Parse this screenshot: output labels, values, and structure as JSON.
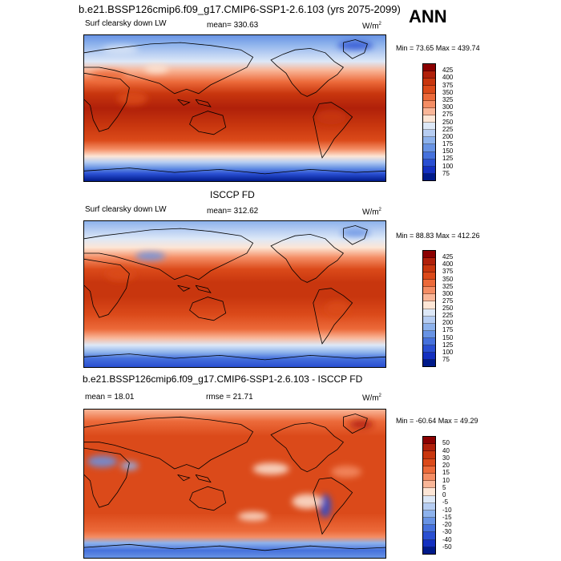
{
  "header": {
    "title": "b.e21.BSSP126cmip6.f09_g17.CMIP6-SSP1-2.6.103 (yrs 2075-2099)",
    "season": "ANN"
  },
  "panels": [
    {
      "id": "model",
      "variable": "Surf clearsky down LW",
      "stat_left": "mean= 330.63",
      "units": "W/m",
      "units_sup": "2",
      "minmax": "Min =  73.65 Max = 439.74",
      "levels": [
        "425",
        "400",
        "375",
        "350",
        "325",
        "300",
        "275",
        "250",
        "225",
        "200",
        "175",
        "150",
        "125",
        "100",
        "75"
      ],
      "colors": [
        "#8b0000",
        "#b0200a",
        "#c8360e",
        "#db4a1a",
        "#ec6a3a",
        "#f48d64",
        "#f9b698",
        "#fde6d6",
        "#dde8f7",
        "#b6cdf2",
        "#8db2ec",
        "#6893e4",
        "#4671dc",
        "#2a4fd2",
        "#1430c0",
        "#001a8a"
      ],
      "map_style": "abs_model"
    },
    {
      "id": "obs",
      "heading": "ISCCP FD",
      "variable": "Surf clearsky down LW",
      "stat_left": "mean= 312.62",
      "units": "W/m",
      "units_sup": "2",
      "minmax": "Min =  88.83 Max = 412.26",
      "levels": [
        "425",
        "400",
        "375",
        "350",
        "325",
        "300",
        "275",
        "250",
        "225",
        "200",
        "175",
        "150",
        "125",
        "100",
        "75"
      ],
      "colors": [
        "#8b0000",
        "#b0200a",
        "#c8360e",
        "#db4a1a",
        "#ec6a3a",
        "#f48d64",
        "#f9b698",
        "#fde6d6",
        "#dde8f7",
        "#b6cdf2",
        "#8db2ec",
        "#6893e4",
        "#4671dc",
        "#2a4fd2",
        "#1430c0",
        "#001a8a"
      ],
      "map_style": "abs_obs"
    },
    {
      "id": "diff",
      "heading": "b.e21.BSSP126cmip6.f09_g17.CMIP6-SSP1-2.6.103 - ISCCP FD",
      "stat_left": "mean =  18.01",
      "stat_mid": "rmse =  21.71",
      "units": "W/m",
      "units_sup": "2",
      "minmax": "Min = -60.64 Max =  49.29",
      "levels": [
        "50",
        "40",
        "30",
        "20",
        "15",
        "10",
        "5",
        "0",
        "-5",
        "-10",
        "-15",
        "-20",
        "-30",
        "-40",
        "-50"
      ],
      "colors": [
        "#8b0000",
        "#b0200a",
        "#c8360e",
        "#db4a1a",
        "#ec6a3a",
        "#f48d64",
        "#f9b698",
        "#fde6d6",
        "#dde8f7",
        "#b6cdf2",
        "#8db2ec",
        "#6893e4",
        "#4671dc",
        "#2a4fd2",
        "#1430c0",
        "#001a8a"
      ],
      "map_style": "diff"
    }
  ]
}
